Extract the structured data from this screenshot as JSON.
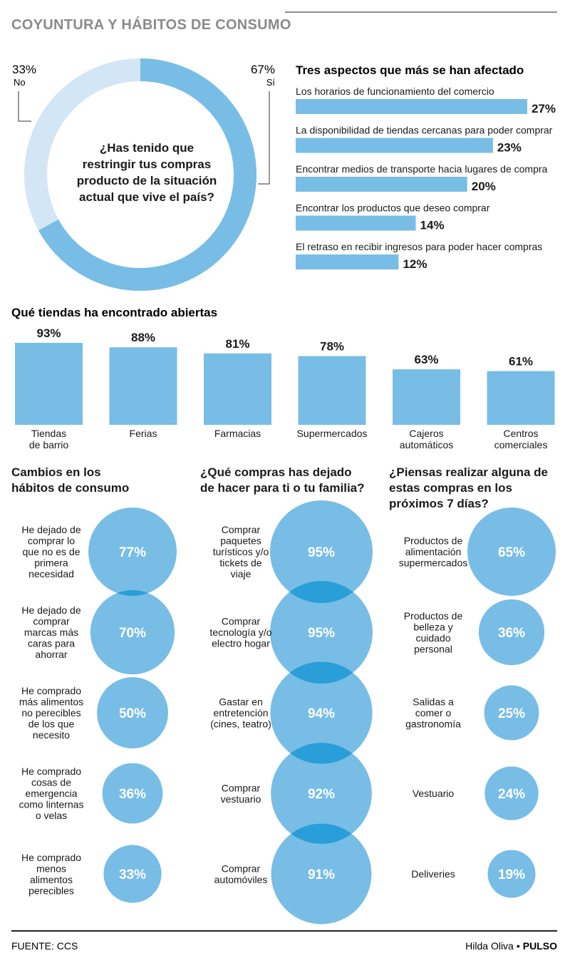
{
  "header": {
    "title": "COYUNTURA Y HÁBITOS DE CONSUMO"
  },
  "colors": {
    "bar": "#78bde6",
    "bar_light": "#d3e6f6",
    "overlap": "#2a9ed8",
    "text": "#1a1a1a",
    "title_gray": "#888888",
    "rule": "#222222"
  },
  "chart_data": [
    {
      "id": "donut",
      "type": "pie",
      "question": [
        "¿Has tenido que",
        "restringir tus compras",
        "producto de la situación",
        "actual que vive el país?"
      ],
      "slices": [
        {
          "label": "Sí",
          "value": 67,
          "value_label": "67%"
        },
        {
          "label": "No",
          "value": 33,
          "value_label": "33%"
        }
      ]
    },
    {
      "id": "aspects",
      "type": "bar",
      "orientation": "horizontal",
      "title": "Tres aspectos que más se han afectado",
      "categories": [
        "Los horarios de funcionamiento del comercio",
        "La disponibilidad de tiendas cercanas para poder comprar",
        "Encontrar medios de transporte hacia lugares de compra",
        "Encontrar los productos que deseo comprar",
        "El retraso en recibir ingresos para poder hacer compras"
      ],
      "values": [
        27,
        23,
        20,
        14,
        12
      ],
      "value_labels": [
        "27%",
        "23%",
        "20%",
        "14%",
        "12%"
      ]
    },
    {
      "id": "stores",
      "type": "bar",
      "title": "Qué tiendas ha encontrado abiertas",
      "categories": [
        [
          "Tiendas",
          "de barrio"
        ],
        [
          "Ferias"
        ],
        [
          "Farmacias"
        ],
        [
          "Supermercados"
        ],
        [
          "Cajeros",
          "automáticos"
        ],
        [
          "Centros",
          "comerciales"
        ]
      ],
      "values": [
        93,
        88,
        81,
        78,
        63,
        61
      ],
      "value_labels": [
        "93%",
        "88%",
        "81%",
        "78%",
        "63%",
        "61%"
      ]
    },
    {
      "id": "habits",
      "type": "bubble",
      "title": [
        "Cambios en los",
        "hábitos de consumo"
      ],
      "categories": [
        [
          "He dejado de",
          "comprar lo",
          "que no es de",
          "primera",
          "necesidad"
        ],
        [
          "He dejado de",
          "comprar",
          "marcas más",
          "caras para",
          "ahorrar"
        ],
        [
          "He comprado",
          "más alimentos",
          "no perecibles",
          "de los que",
          "necesito"
        ],
        [
          "He comprado",
          "cosas de",
          "emergencia",
          "como linternas",
          "o velas"
        ],
        [
          "He comprado",
          "menos",
          "alimentos",
          "perecibles"
        ]
      ],
      "values": [
        77,
        70,
        50,
        36,
        33
      ],
      "value_labels": [
        "77%",
        "70%",
        "50%",
        "36%",
        "33%"
      ]
    },
    {
      "id": "stopped",
      "type": "bubble",
      "title": [
        "¿Qué compras has dejado",
        "de hacer para ti o tu familia?"
      ],
      "categories": [
        [
          "Comprar",
          "paquetes",
          "turísticos y/o",
          "tickets de",
          "viaje"
        ],
        [
          "Comprar",
          "tecnología y/o",
          "electro hogar"
        ],
        [
          "Gastar en",
          "entretención",
          "(cines, teatro)"
        ],
        [
          "Comprar",
          "vestuario"
        ],
        [
          "Comprar",
          "automóviles"
        ]
      ],
      "values": [
        95,
        95,
        94,
        92,
        91
      ],
      "value_labels": [
        "95%",
        "95%",
        "94%",
        "92%",
        "91%"
      ]
    },
    {
      "id": "plans",
      "type": "bubble",
      "title": [
        "¿Piensas realizar alguna de",
        "estas compras en los",
        "próximos 7 días?"
      ],
      "categories": [
        [
          "Productos de",
          "alimentación",
          "supermercados"
        ],
        [
          "Productos de",
          "belleza y",
          "cuidado",
          "personal"
        ],
        [
          "Salidas a",
          "comer o",
          "gastronomía"
        ],
        [
          "Vestuario"
        ],
        [
          "Deliveries"
        ]
      ],
      "values": [
        65,
        36,
        25,
        24,
        19
      ],
      "value_labels": [
        "65%",
        "36%",
        "25%",
        "24%",
        "19%"
      ]
    }
  ],
  "footer": {
    "source": "FUENTE: CCS",
    "author": "Hilda Oliva",
    "separator": "•",
    "brand": "PULSO"
  }
}
